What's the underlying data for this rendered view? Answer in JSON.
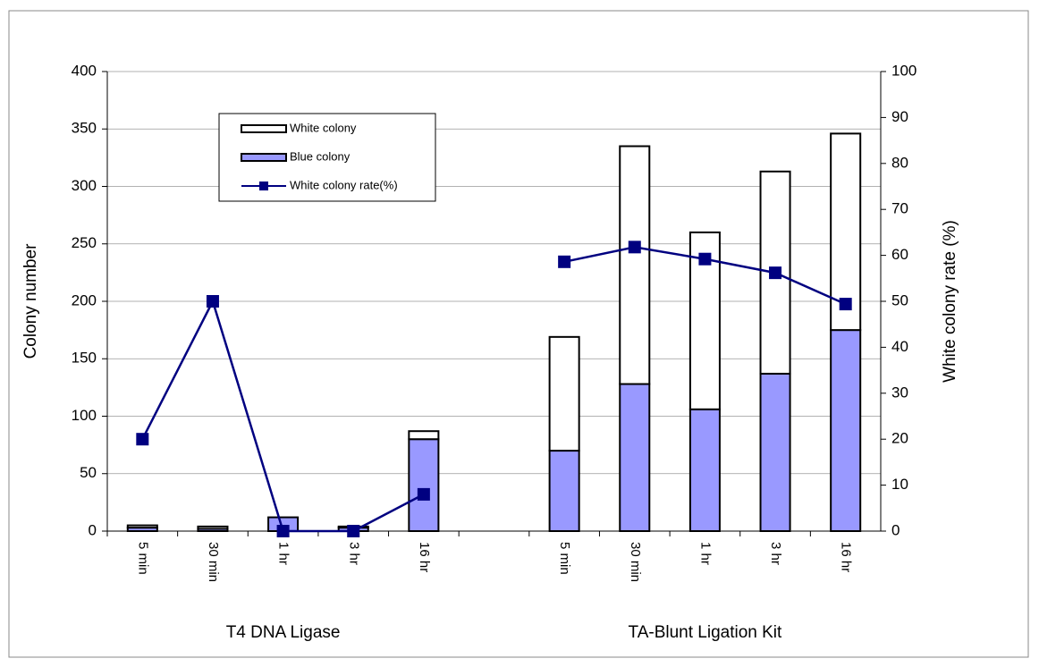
{
  "chart_data": {
    "type": "bar",
    "categories": [
      "5 min",
      "30 min",
      "1 hr",
      "3 hr",
      "16 hr",
      null,
      "5 min",
      "30 min",
      "1 hr",
      "3 hr",
      "16 hr"
    ],
    "group_labels": [
      "T4 DNA Ligase",
      "TA-Blunt Ligation Kit"
    ],
    "y_label": "Colony number",
    "y2_label": "White colony rate (%)",
    "series": [
      {
        "name": "White colony",
        "type": "bar",
        "color": "#ffffff",
        "values": [
          2,
          2,
          0,
          1,
          7,
          null,
          99,
          207,
          154,
          176,
          171
        ]
      },
      {
        "name": "Blue colony",
        "type": "bar",
        "color": "#9999ff",
        "values": [
          3,
          2,
          12,
          3,
          80,
          null,
          70,
          128,
          106,
          137,
          175
        ]
      },
      {
        "name": "White colony rate(%)",
        "type": "line",
        "axis": "y2",
        "color": "#000080",
        "values": [
          20,
          50,
          0,
          0,
          8,
          null,
          58.6,
          61.8,
          59.2,
          56.2,
          49.4
        ]
      }
    ],
    "ylim": [
      0,
      400
    ],
    "yticks": [
      0,
      50,
      100,
      150,
      200,
      250,
      300,
      350,
      400
    ],
    "y2lim": [
      0,
      100
    ],
    "y2ticks": [
      0,
      10,
      20,
      30,
      40,
      50,
      60,
      70,
      80,
      90,
      100
    ],
    "grid": true
  }
}
